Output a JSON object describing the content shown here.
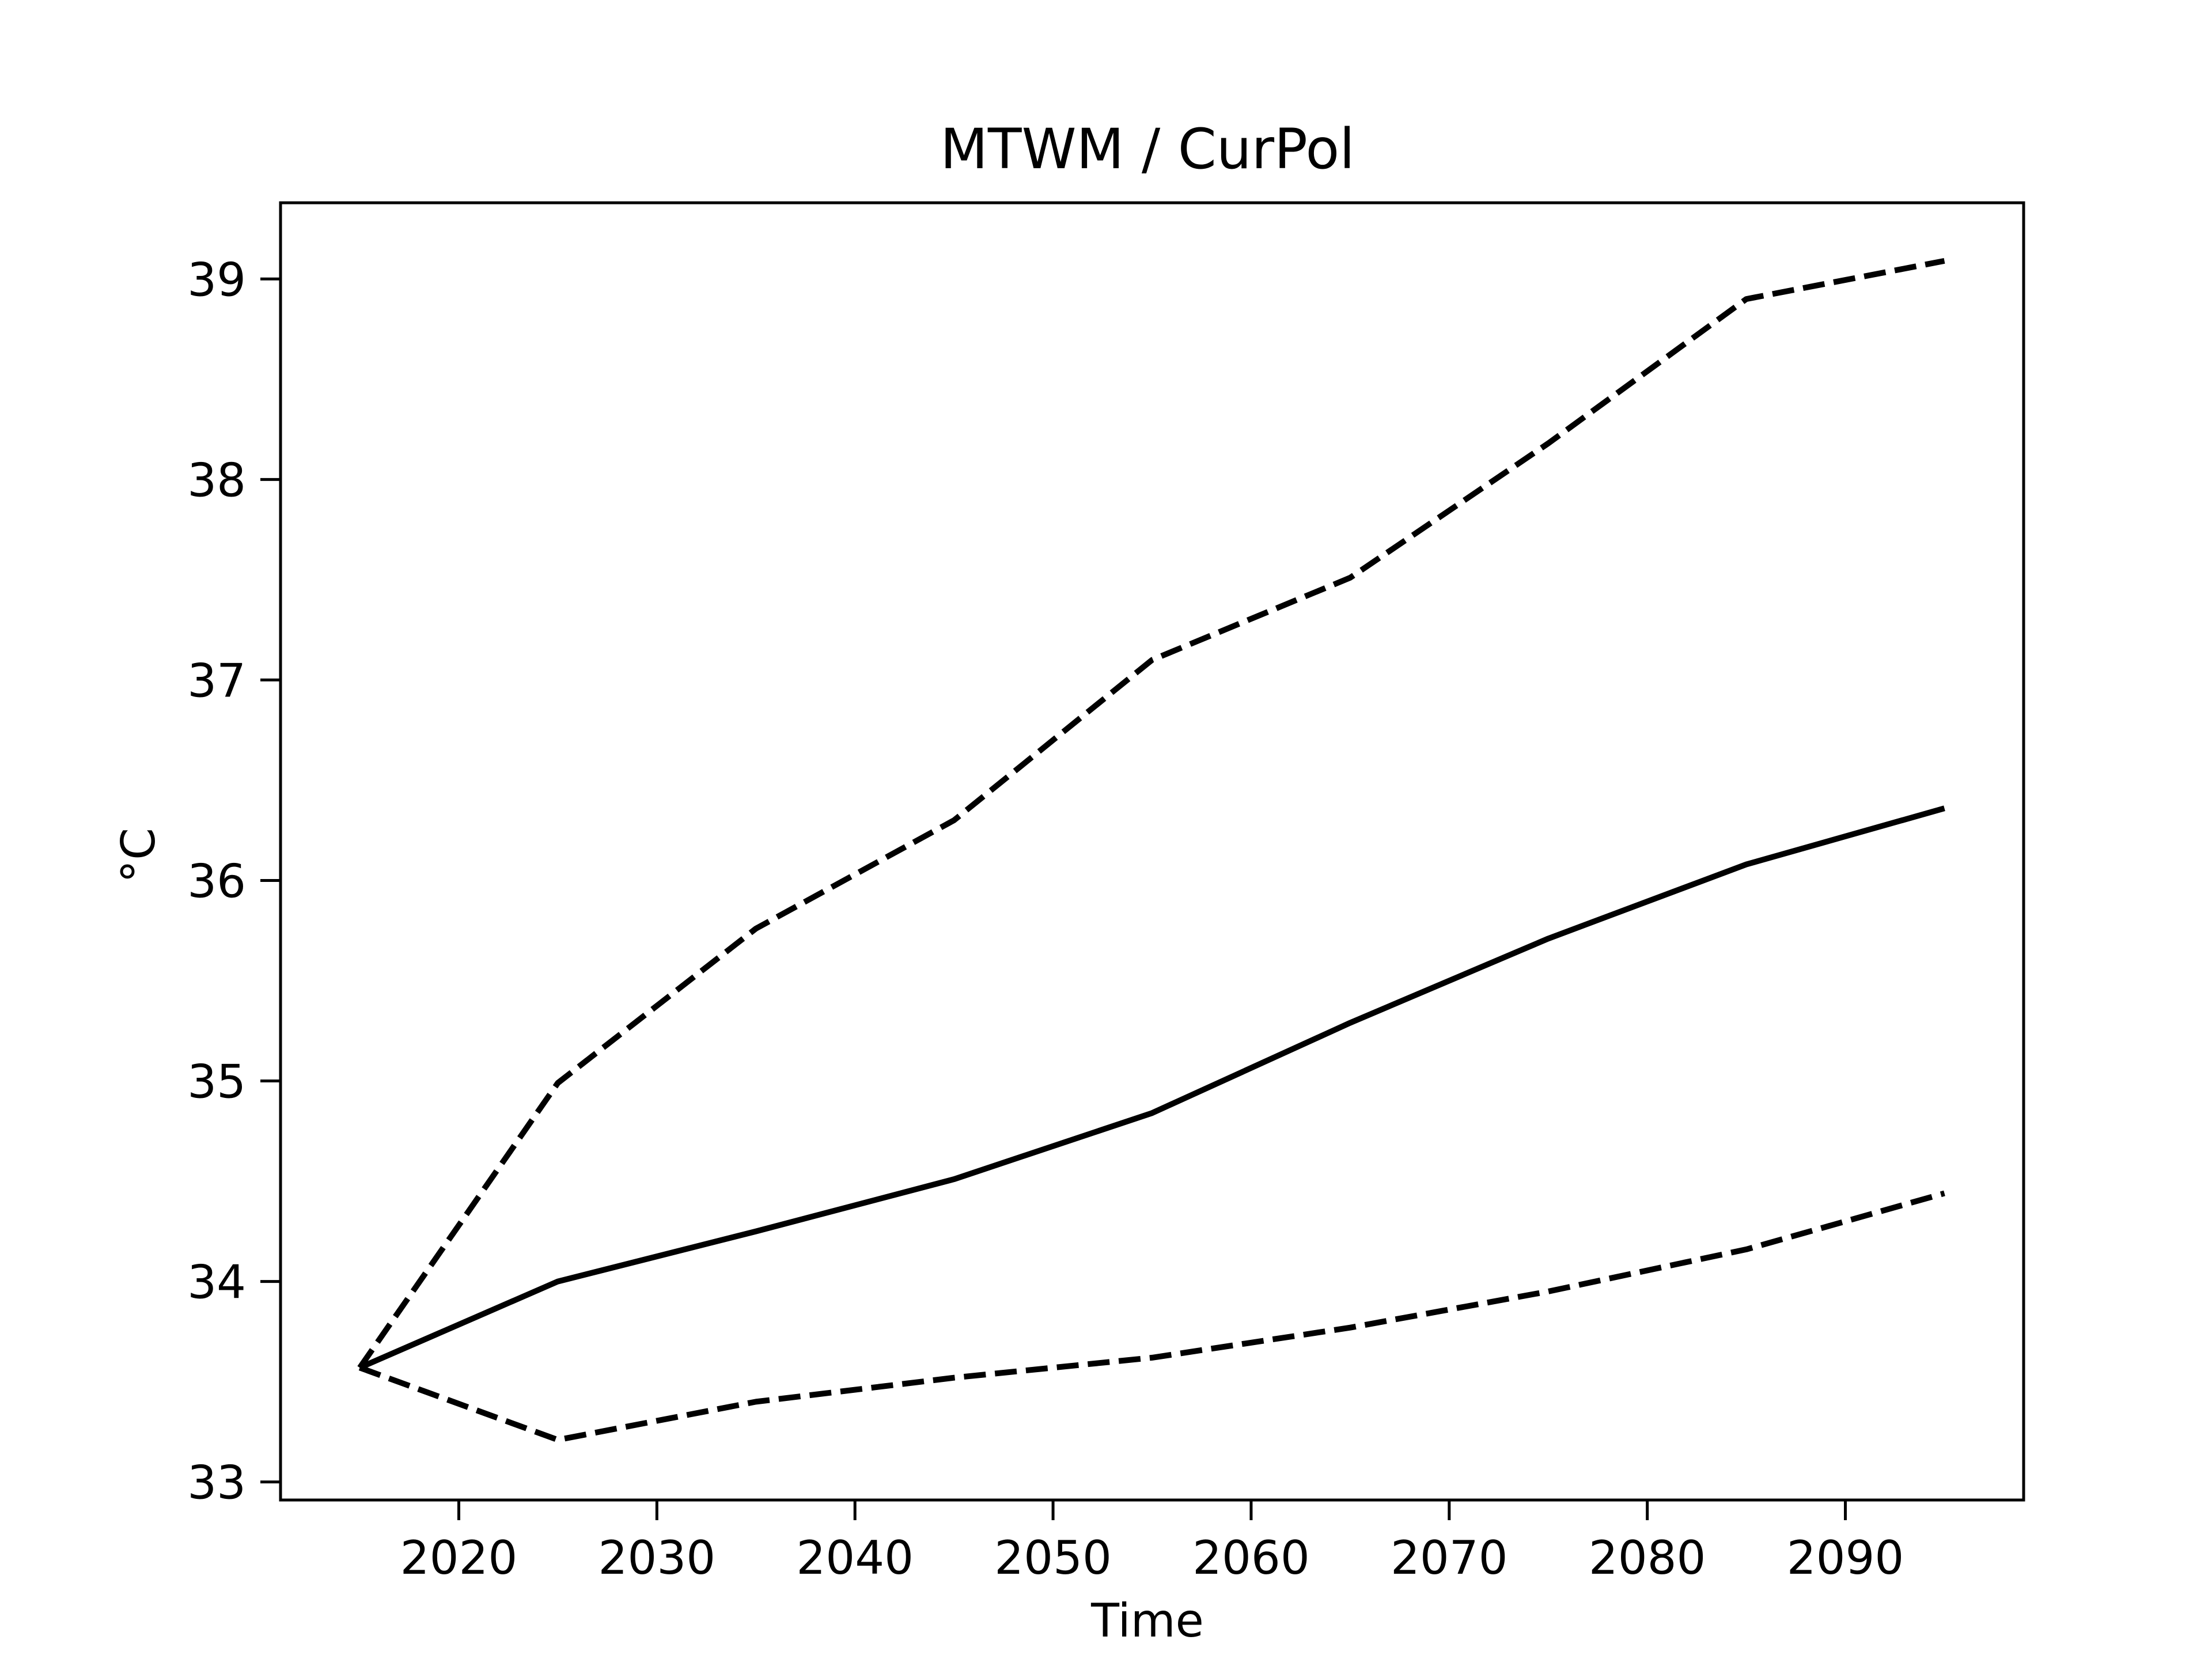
{
  "chart_data": {
    "type": "line",
    "title": "MTWM / CurPol",
    "xlabel": "Time",
    "ylabel": "°C",
    "xlim": [
      2011,
      2099
    ],
    "ylim": [
      32.91,
      39.38
    ],
    "x_ticks": [
      2020,
      2030,
      2040,
      2050,
      2060,
      2070,
      2080,
      2090
    ],
    "y_ticks": [
      33,
      34,
      35,
      36,
      37,
      38,
      39
    ],
    "grid": false,
    "x": [
      2015,
      2025,
      2035,
      2045,
      2055,
      2065,
      2075,
      2085,
      2095
    ],
    "series": [
      {
        "style": "solid",
        "color": "#000000",
        "values": [
          33.57,
          34.0,
          34.25,
          34.51,
          34.84,
          35.29,
          35.71,
          36.08,
          36.36
        ]
      },
      {
        "style": "dashed",
        "color": "#000000",
        "values": [
          33.57,
          34.99,
          35.76,
          36.3,
          37.1,
          37.51,
          38.18,
          38.9,
          39.09
        ]
      },
      {
        "style": "dashed",
        "color": "#000000",
        "values": [
          33.57,
          33.21,
          33.4,
          33.52,
          33.62,
          33.77,
          33.95,
          34.16,
          34.44
        ]
      }
    ]
  }
}
